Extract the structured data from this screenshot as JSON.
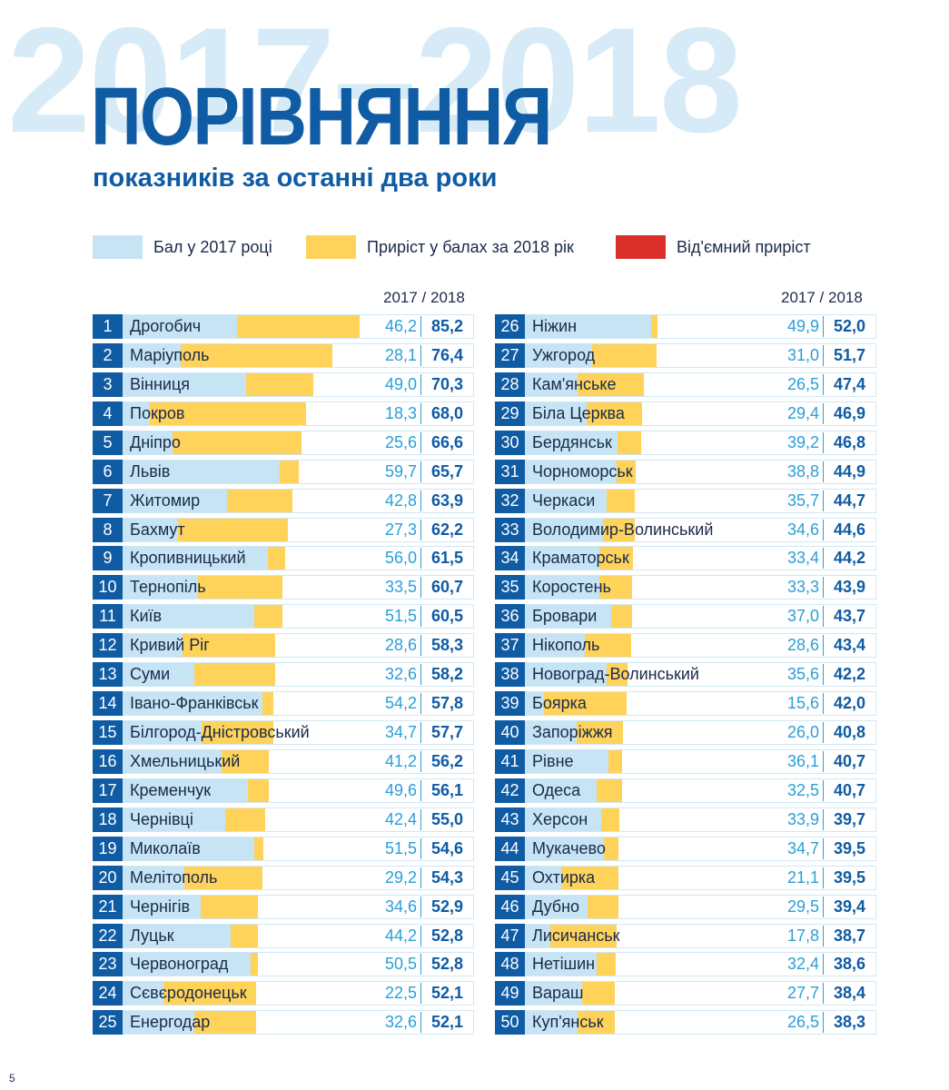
{
  "header": {
    "bg_year": "2017–2018",
    "title": "ПОРІВНЯННЯ",
    "subtitle": "показників за останні два роки"
  },
  "legend": {
    "base_label": "Бал у 2017 році",
    "gain_label": "Приріст у балах за 2018 рік",
    "neg_label": "Від'ємний приріст"
  },
  "colors": {
    "base": "#c6e4f4",
    "gain": "#ffd25a",
    "negative": "#d9302b",
    "rank_bg": "#0f5ba4",
    "value_2017": "#2a9fd8",
    "value_2018": "#0f5ba4"
  },
  "column_header": "2017 / 2018",
  "page_number": "5",
  "chart_data": {
    "type": "bar",
    "title": "ПОРІВНЯННЯ",
    "subtitle": "показників за останні два роки",
    "stacked": true,
    "orientation": "horizontal",
    "xlim": [
      0,
      90
    ],
    "series": [
      {
        "name": "Бал у 2017 році",
        "key": "v2017"
      },
      {
        "name": "Приріст у балах за 2018 рік",
        "key": "gain"
      }
    ],
    "rows": [
      {
        "rank": "1",
        "name": "Дрогобич",
        "v2017": "46,2",
        "v2018": "85,2"
      },
      {
        "rank": "2",
        "name": "Маріуполь",
        "v2017": "28,1",
        "v2018": "76,4"
      },
      {
        "rank": "3",
        "name": "Вінниця",
        "v2017": "49,0",
        "v2018": "70,3"
      },
      {
        "rank": "4",
        "name": "Покров",
        "v2017": "18,3",
        "v2018": "68,0"
      },
      {
        "rank": "5",
        "name": "Дніпро",
        "v2017": "25,6",
        "v2018": "66,6"
      },
      {
        "rank": "6",
        "name": "Львів",
        "v2017": "59,7",
        "v2018": "65,7"
      },
      {
        "rank": "7",
        "name": "Житомир",
        "v2017": "42,8",
        "v2018": "63,9"
      },
      {
        "rank": "8",
        "name": "Бахмут",
        "v2017": "27,3",
        "v2018": "62,2"
      },
      {
        "rank": "9",
        "name": "Кропивницький",
        "v2017": "56,0",
        "v2018": "61,5"
      },
      {
        "rank": "10",
        "name": "Тернопіль",
        "v2017": "33,5",
        "v2018": "60,7"
      },
      {
        "rank": "11",
        "name": "Київ",
        "v2017": "51,5",
        "v2018": "60,5"
      },
      {
        "rank": "12",
        "name": "Кривий Ріг",
        "v2017": "28,6",
        "v2018": "58,3"
      },
      {
        "rank": "13",
        "name": "Суми",
        "v2017": "32,6",
        "v2018": "58,2"
      },
      {
        "rank": "14",
        "name": "Івано-Франківськ",
        "v2017": "54,2",
        "v2018": "57,8"
      },
      {
        "rank": "15",
        "name": "Білгород-Дністровський",
        "v2017": "34,7",
        "v2018": "57,7"
      },
      {
        "rank": "16",
        "name": "Хмельницький",
        "v2017": "41,2",
        "v2018": "56,2"
      },
      {
        "rank": "17",
        "name": "Кременчук",
        "v2017": "49,6",
        "v2018": "56,1"
      },
      {
        "rank": "18",
        "name": "Чернівці",
        "v2017": "42,4",
        "v2018": "55,0"
      },
      {
        "rank": "19",
        "name": "Миколаїв",
        "v2017": "51,5",
        "v2018": "54,6"
      },
      {
        "rank": "20",
        "name": "Мелітополь",
        "v2017": "29,2",
        "v2018": "54,3"
      },
      {
        "rank": "21",
        "name": "Чернігів",
        "v2017": "34,6",
        "v2018": "52,9"
      },
      {
        "rank": "22",
        "name": "Луцьк",
        "v2017": "44,2",
        "v2018": "52,8"
      },
      {
        "rank": "23",
        "name": "Червоноград",
        "v2017": "50,5",
        "v2018": "52,8"
      },
      {
        "rank": "24",
        "name": "Сєвєродонецьк",
        "v2017": "22,5",
        "v2018": "52,1"
      },
      {
        "rank": "25",
        "name": "Енергодар",
        "v2017": "32,6",
        "v2018": "52,1"
      },
      {
        "rank": "26",
        "name": "Ніжин",
        "v2017": "49,9",
        "v2018": "52,0"
      },
      {
        "rank": "27",
        "name": "Ужгород",
        "v2017": "31,0",
        "v2018": "51,7"
      },
      {
        "rank": "28",
        "name": "Кам'янське",
        "v2017": "26,5",
        "v2018": "47,4"
      },
      {
        "rank": "29",
        "name": "Біла Церква",
        "v2017": "29,4",
        "v2018": "46,9"
      },
      {
        "rank": "30",
        "name": "Бердянськ",
        "v2017": "39,2",
        "v2018": "46,8"
      },
      {
        "rank": "31",
        "name": "Чорноморськ",
        "v2017": "38,8",
        "v2018": "44,9"
      },
      {
        "rank": "32",
        "name": "Черкаси",
        "v2017": "35,7",
        "v2018": "44,7"
      },
      {
        "rank": "33",
        "name": "Володимир-Волинський",
        "v2017": "34,6",
        "v2018": "44,6"
      },
      {
        "rank": "34",
        "name": "Краматорськ",
        "v2017": "33,4",
        "v2018": "44,2"
      },
      {
        "rank": "35",
        "name": "Коростень",
        "v2017": "33,3",
        "v2018": "43,9"
      },
      {
        "rank": "36",
        "name": "Бровари",
        "v2017": "37,0",
        "v2018": "43,7"
      },
      {
        "rank": "37",
        "name": "Нікополь",
        "v2017": "28,6",
        "v2018": "43,4"
      },
      {
        "rank": "38",
        "name": "Новоград-Волинський",
        "v2017": "35,6",
        "v2018": "42,2"
      },
      {
        "rank": "39",
        "name": "Боярка",
        "v2017": "15,6",
        "v2018": "42,0"
      },
      {
        "rank": "40",
        "name": "Запоріжжя",
        "v2017": "26,0",
        "v2018": "40,8"
      },
      {
        "rank": "41",
        "name": "Рівне",
        "v2017": "36,1",
        "v2018": "40,7"
      },
      {
        "rank": "42",
        "name": "Одеса",
        "v2017": "32,5",
        "v2018": "40,7"
      },
      {
        "rank": "43",
        "name": "Херсон",
        "v2017": "33,9",
        "v2018": "39,7"
      },
      {
        "rank": "44",
        "name": "Мукачево",
        "v2017": "34,7",
        "v2018": "39,5"
      },
      {
        "rank": "45",
        "name": "Охтирка",
        "v2017": "21,1",
        "v2018": "39,5"
      },
      {
        "rank": "46",
        "name": "Дубно",
        "v2017": "29,5",
        "v2018": "39,4"
      },
      {
        "rank": "47",
        "name": "Лисичанськ",
        "v2017": "17,8",
        "v2018": "38,7"
      },
      {
        "rank": "48",
        "name": "Нетішин",
        "v2017": "32,4",
        "v2018": "38,6"
      },
      {
        "rank": "49",
        "name": "Вараш",
        "v2017": "27,7",
        "v2018": "38,4"
      },
      {
        "rank": "50",
        "name": "Куп'янськ",
        "v2017": "26,5",
        "v2018": "38,3"
      }
    ]
  }
}
